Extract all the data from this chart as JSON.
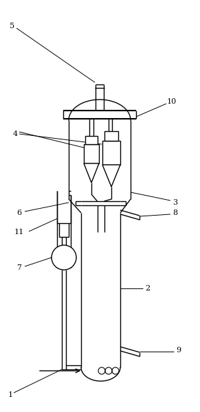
{
  "background_color": "#ffffff",
  "line_color": "#000000",
  "figure_width": 2.91,
  "figure_height": 6.0,
  "dpi": 100
}
